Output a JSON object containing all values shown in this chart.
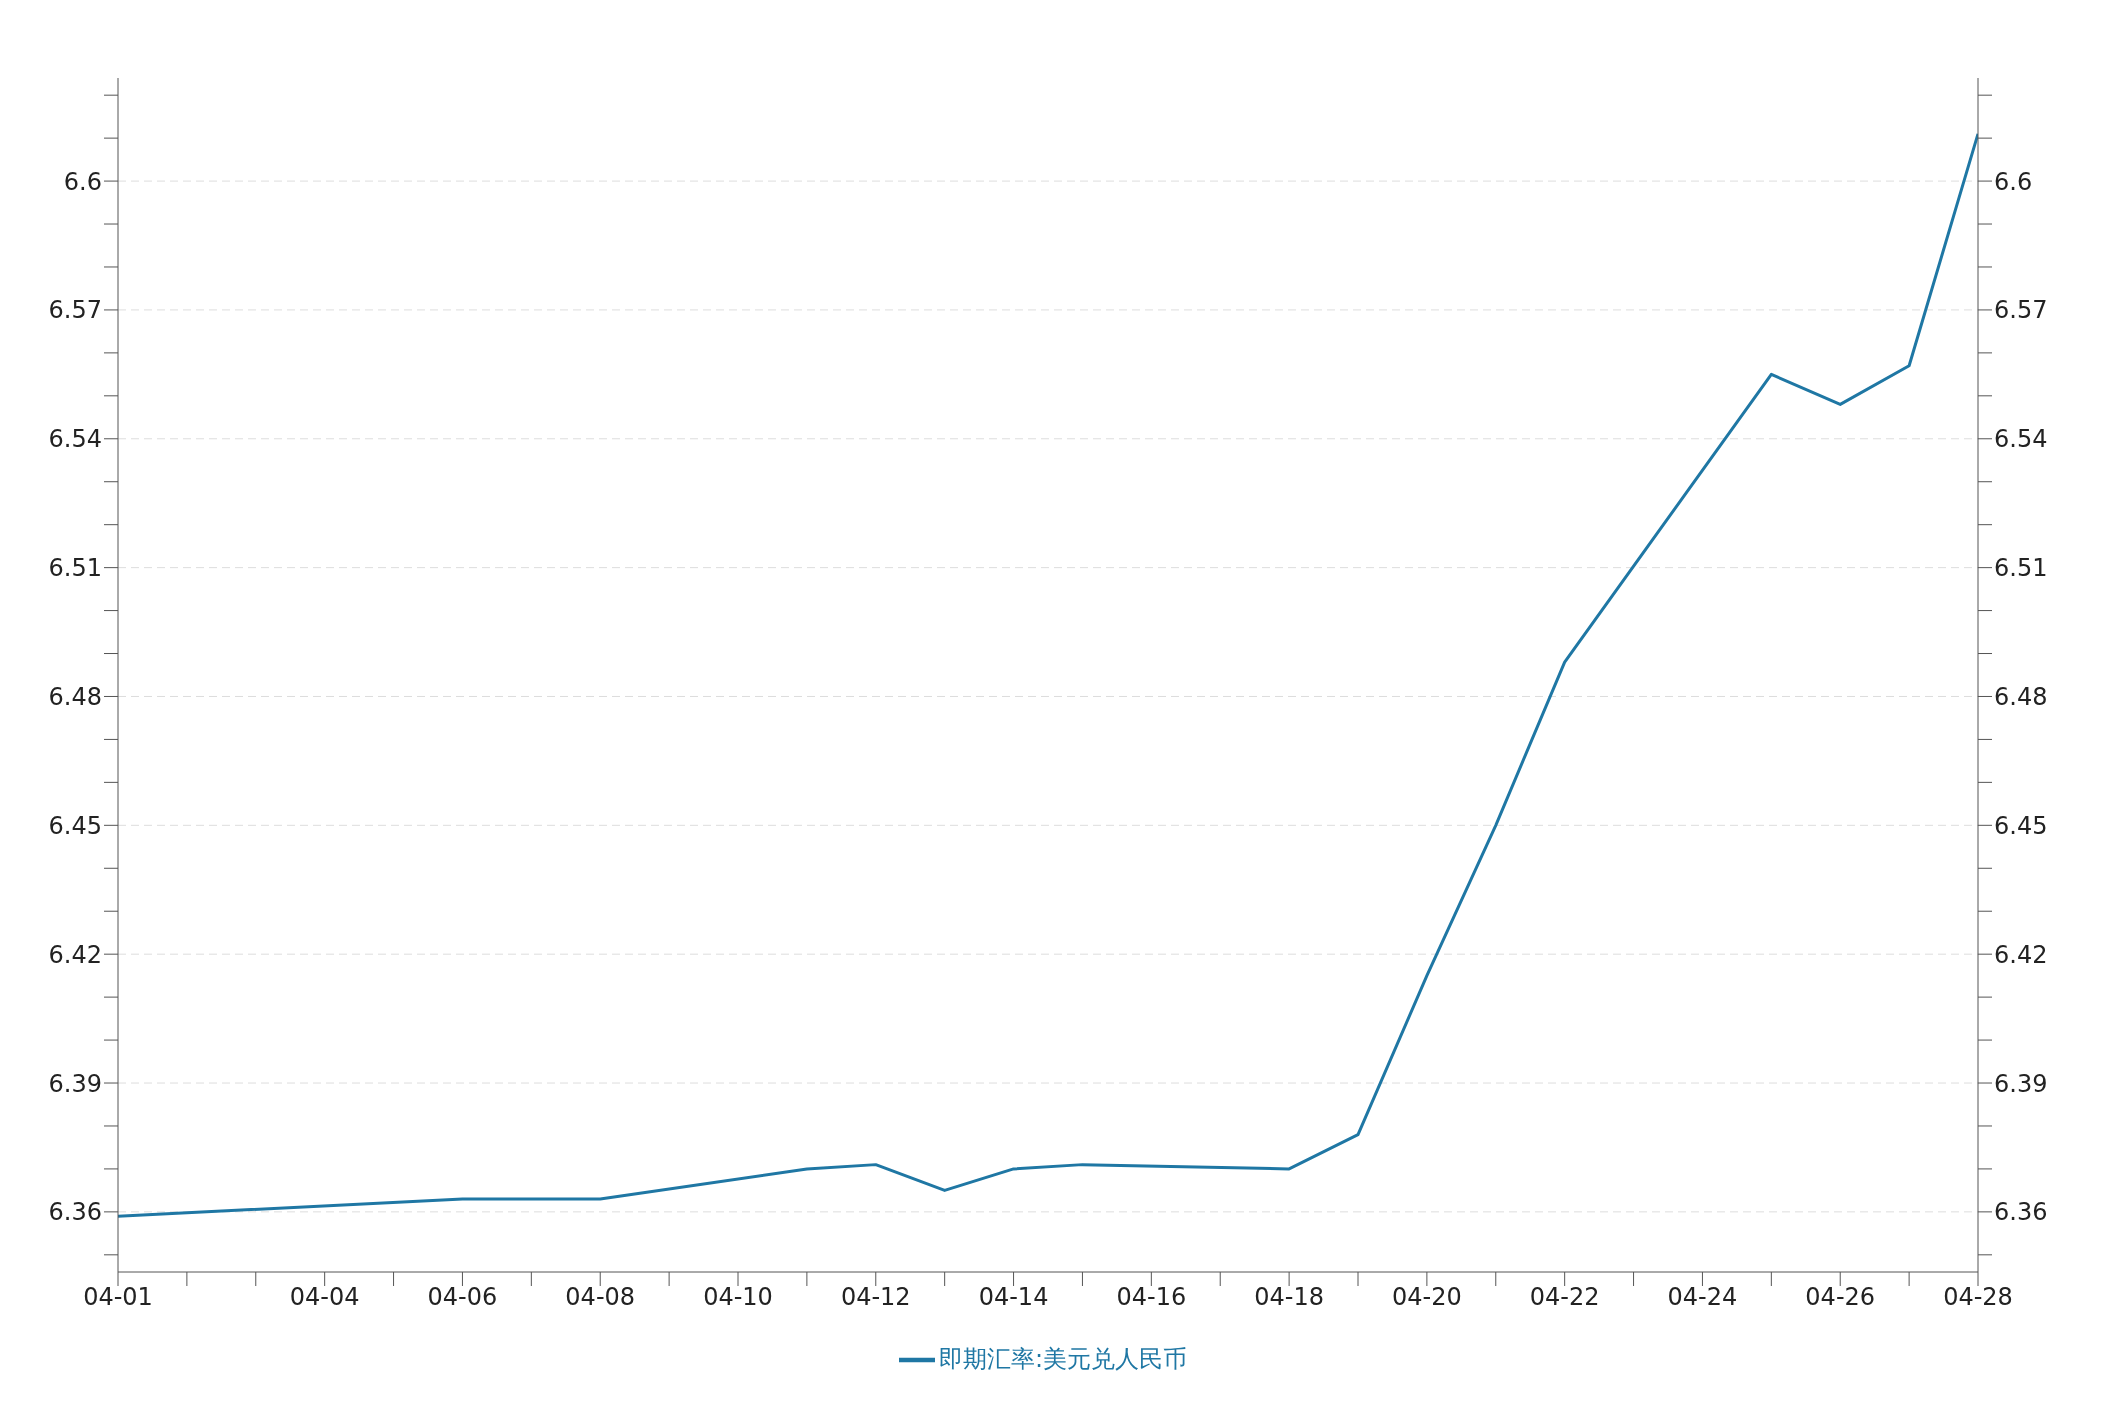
{
  "chart_data": {
    "type": "line",
    "x": [
      "--04-01",
      "--04-06",
      "--04-07",
      "--04-08",
      "--04-11",
      "--04-12",
      "--04-13",
      "--04-14",
      "--04-15",
      "--04-18",
      "--04-19",
      "--04-20",
      "--04-21",
      "--04-22",
      "--04-25",
      "--04-26",
      "--04-27",
      "--04-28"
    ],
    "series": [
      {
        "name": "即期汇率:美元兑人民币",
        "color": "#1f77a4",
        "values": [
          6.359,
          6.363,
          6.363,
          6.363,
          6.37,
          6.371,
          6.365,
          6.37,
          6.371,
          6.37,
          6.378,
          6.415,
          6.45,
          6.488,
          6.555,
          6.548,
          6.557,
          6.611
        ]
      }
    ],
    "xlim": [
      "--04-01",
      "--04-28"
    ],
    "xticks": [
      {
        "value": "--04-01",
        "label": "04-01"
      },
      {
        "value": "--04-02",
        "label": null
      },
      {
        "value": "--04-03",
        "label": null
      },
      {
        "value": "--04-04",
        "label": "04-04"
      },
      {
        "value": "--04-05",
        "label": null
      },
      {
        "value": "--04-06",
        "label": "04-06"
      },
      {
        "value": "--04-07",
        "label": null
      },
      {
        "value": "--04-08",
        "label": "04-08"
      },
      {
        "value": "--04-09",
        "label": null
      },
      {
        "value": "--04-10",
        "label": "04-10"
      },
      {
        "value": "--04-11",
        "label": null
      },
      {
        "value": "--04-12",
        "label": "04-12"
      },
      {
        "value": "--04-13",
        "label": null
      },
      {
        "value": "--04-14",
        "label": "04-14"
      },
      {
        "value": "--04-15",
        "label": null
      },
      {
        "value": "--04-16",
        "label": "04-16"
      },
      {
        "value": "--04-17",
        "label": null
      },
      {
        "value": "--04-18",
        "label": "04-18"
      },
      {
        "value": "--04-19",
        "label": null
      },
      {
        "value": "--04-20",
        "label": "04-20"
      },
      {
        "value": "--04-21",
        "label": null
      },
      {
        "value": "--04-22",
        "label": "04-22"
      },
      {
        "value": "--04-23",
        "label": null
      },
      {
        "value": "--04-24",
        "label": "04-24"
      },
      {
        "value": "--04-25",
        "label": null
      },
      {
        "value": "--04-26",
        "label": "04-26"
      },
      {
        "value": "--04-27",
        "label": null
      },
      {
        "value": "--04-28",
        "label": "04-28"
      }
    ],
    "ylim": [
      6.346,
      6.624
    ],
    "yticks": [
      {
        "value": 6.35,
        "label": null
      },
      {
        "value": 6.36,
        "label": "6.36"
      },
      {
        "value": 6.37,
        "label": null
      },
      {
        "value": 6.38,
        "label": null
      },
      {
        "value": 6.39,
        "label": "6.39"
      },
      {
        "value": 6.4,
        "label": null
      },
      {
        "value": 6.41,
        "label": null
      },
      {
        "value": 6.42,
        "label": "6.42"
      },
      {
        "value": 6.43,
        "label": null
      },
      {
        "value": 6.44,
        "label": null
      },
      {
        "value": 6.45,
        "label": "6.45"
      },
      {
        "value": 6.46,
        "label": null
      },
      {
        "value": 6.47,
        "label": null
      },
      {
        "value": 6.48,
        "label": "6.48"
      },
      {
        "value": 6.49,
        "label": null
      },
      {
        "value": 6.5,
        "label": null
      },
      {
        "value": 6.51,
        "label": "6.51"
      },
      {
        "value": 6.52,
        "label": null
      },
      {
        "value": 6.53,
        "label": null
      },
      {
        "value": 6.54,
        "label": "6.54"
      },
      {
        "value": 6.55,
        "label": null
      },
      {
        "value": 6.56,
        "label": null
      },
      {
        "value": 6.57,
        "label": "6.57"
      },
      {
        "value": 6.58,
        "label": null
      },
      {
        "value": 6.59,
        "label": null
      },
      {
        "value": 6.6,
        "label": "6.6"
      },
      {
        "value": 6.61,
        "label": null
      },
      {
        "value": 6.62,
        "label": null
      }
    ],
    "y2lim": [
      6.346,
      6.624
    ],
    "y2ticks": [
      {
        "value": 6.35,
        "label": null
      },
      {
        "value": 6.36,
        "label": "6.36"
      },
      {
        "value": 6.37,
        "label": null
      },
      {
        "value": 6.38,
        "label": null
      },
      {
        "value": 6.39,
        "label": "6.39"
      },
      {
        "value": 6.4,
        "label": null
      },
      {
        "value": 6.41,
        "label": null
      },
      {
        "value": 6.42,
        "label": "6.42"
      },
      {
        "value": 6.43,
        "label": null
      },
      {
        "value": 6.44,
        "label": null
      },
      {
        "value": 6.45,
        "label": "6.45"
      },
      {
        "value": 6.46,
        "label": null
      },
      {
        "value": 6.47,
        "label": null
      },
      {
        "value": 6.48,
        "label": "6.48"
      },
      {
        "value": 6.49,
        "label": null
      },
      {
        "value": 6.5,
        "label": null
      },
      {
        "value": 6.51,
        "label": "6.51"
      },
      {
        "value": 6.52,
        "label": null
      },
      {
        "value": 6.53,
        "label": null
      },
      {
        "value": 6.54,
        "label": "6.54"
      },
      {
        "value": 6.55,
        "label": null
      },
      {
        "value": 6.56,
        "label": null
      },
      {
        "value": 6.57,
        "label": "6.57"
      },
      {
        "value": 6.58,
        "label": null
      },
      {
        "value": 6.59,
        "label": null
      },
      {
        "value": 6.6,
        "label": "6.6"
      },
      {
        "value": 6.61,
        "label": null
      },
      {
        "value": 6.62,
        "label": null
      }
    ],
    "grid": "y",
    "legend": "bottom",
    "marker": "none",
    "line_style": "solid"
  }
}
